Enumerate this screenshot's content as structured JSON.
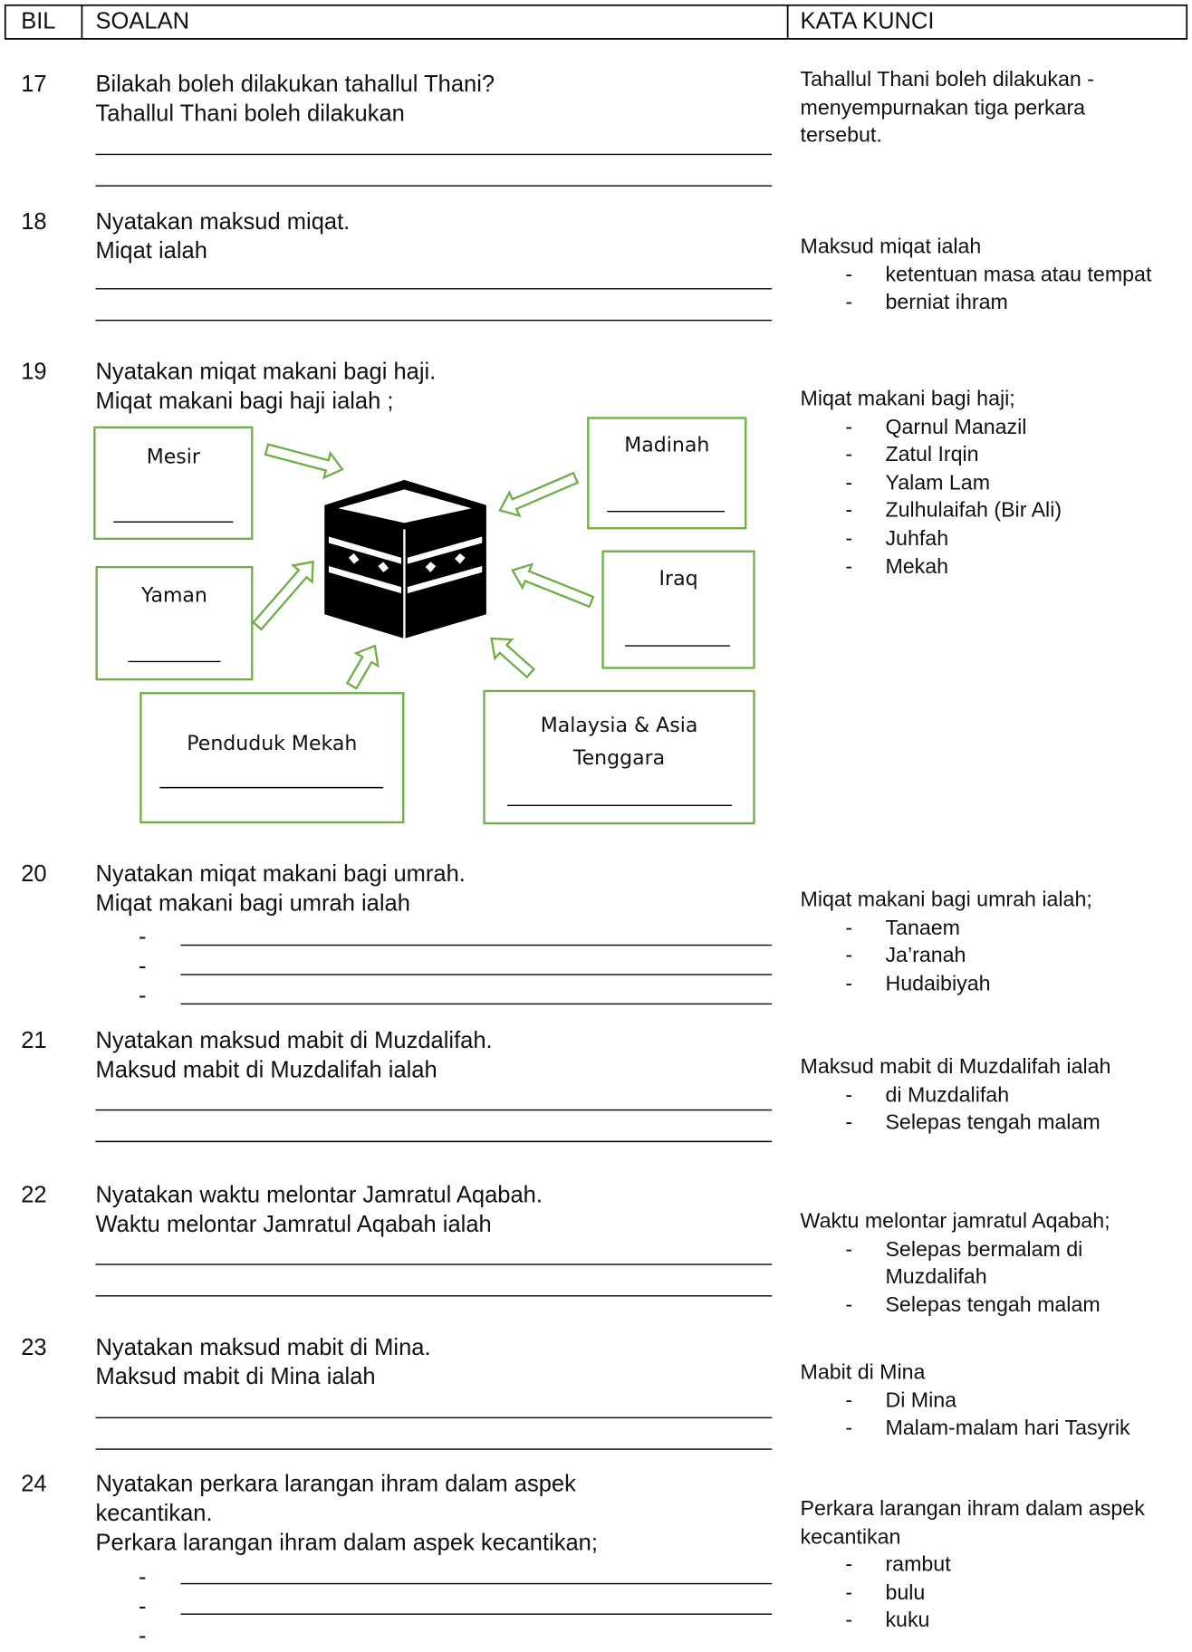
{
  "header": {
    "bil": "BIL",
    "soalan": "SOALAN",
    "kata_kunci": "KATA KUNCI"
  },
  "questions": [
    {
      "number": "17",
      "question": "Bilakah boleh dilakukan tahallul Thani?",
      "prompt": "Tahallul Thani boleh dilakukan",
      "answer": {
        "intro": "Tahallul Thani boleh dilakukan  - menyempurnakan tiga perkara tersebut."
      }
    },
    {
      "number": "18",
      "question": "Nyatakan maksud miqat.",
      "prompt": "Miqat ialah",
      "answer": {
        "intro": "Maksud miqat ialah",
        "items": [
          "ketentuan masa atau tempat",
          "berniat ihram"
        ]
      }
    },
    {
      "number": "19",
      "question": "Nyatakan miqat makani bagi haji.",
      "prompt": "Miqat makani bagi haji ialah ;",
      "answer": {
        "intro": "Miqat makani bagi haji;",
        "items": [
          "Qarnul Manazil",
          "Zatul Irqin",
          "Yalam Lam",
          "Zulhulaifah (Bir Ali)",
          "Juhfah",
          "Mekah"
        ]
      }
    },
    {
      "number": "20",
      "question": "Nyatakan miqat makani bagi umrah.",
      "prompt": "Miqat makani bagi umrah ialah",
      "answer": {
        "intro": "Miqat makani bagi umrah ialah;",
        "items": [
          "Tanaem",
          "Ja’ranah",
          "Hudaibiyah"
        ]
      }
    },
    {
      "number": "21",
      "question": "Nyatakan maksud mabit di Muzdalifah.",
      "prompt": "Maksud mabit di Muzdalifah ialah",
      "answer": {
        "intro": "Maksud mabit di Muzdalifah ialah",
        "items": [
          "di Muzdalifah",
          "Selepas tengah malam"
        ]
      }
    },
    {
      "number": "22",
      "question": "Nyatakan waktu melontar Jamratul Aqabah.",
      "prompt": "Waktu melontar Jamratul Aqabah ialah",
      "answer": {
        "intro": "Waktu melontar jamratul Aqabah;",
        "items": [
          "Selepas bermalam di Muzdalifah",
          "Selepas tengah malam"
        ]
      }
    },
    {
      "number": "23",
      "question": "Nyatakan maksud mabit di Mina.",
      "prompt": "Maksud mabit di Mina ialah",
      "answer": {
        "intro": "Mabit di Mina",
        "items": [
          "Di Mina",
          "Malam-malam hari Tasyrik"
        ]
      }
    },
    {
      "number": "24",
      "question": "Nyatakan perkara larangan ihram dalam aspek kecantikan.",
      "prompt": "Perkara larangan ihram dalam aspek kecantikan;",
      "answer": {
        "intro": "Perkara larangan ihram dalam aspek kecantikan",
        "items": [
          "rambut",
          "bulu",
          "kuku"
        ]
      }
    }
  ],
  "diagram": {
    "boxes": [
      "Mesir",
      "Madinah",
      "Yaman",
      "Iraq",
      "Penduduk Mekah",
      "Malaysia & Asia Tenggara"
    ]
  }
}
